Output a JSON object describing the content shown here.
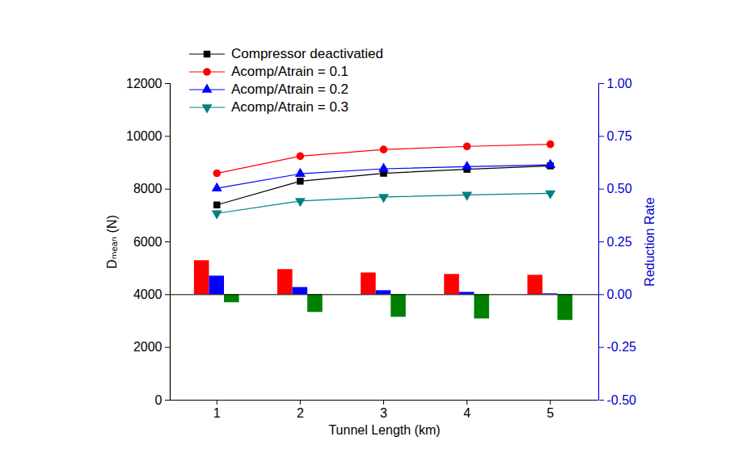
{
  "chart_data": {
    "type": "line",
    "xlabel": "Tunnel Length (km)",
    "ylabel": "Dₘₑₐₙ (N)",
    "y2label": "Reduction Rate",
    "x": [
      1,
      2,
      3,
      4,
      5
    ],
    "xlim": [
      0.44,
      5.58
    ],
    "xticks": [
      1,
      2,
      3,
      4,
      5
    ],
    "ylim": [
      0,
      12000
    ],
    "yticks": [
      0,
      2000,
      4000,
      6000,
      8000,
      10000,
      12000
    ],
    "y2lim": [
      -0.5,
      1.0
    ],
    "y2ticks": [
      {
        "value": -0.5,
        "label": "-0.50"
      },
      {
        "value": -0.25,
        "label": "-0.25"
      },
      {
        "value": 0,
        "label": "0.00"
      },
      {
        "value": 0.25,
        "label": "0.25"
      },
      {
        "value": 0.5,
        "label": "0.50"
      },
      {
        "value": 0.75,
        "label": "0.75"
      },
      {
        "value": 1.0,
        "label": "1.00"
      }
    ],
    "legend": "upper left",
    "series": [
      {
        "name": "Compressor deactivatied",
        "color": "#000000",
        "marker": "square",
        "values": [
          7400,
          8300,
          8600,
          8750,
          8880
        ]
      },
      {
        "name": "Acomp/Atrain = 0.1",
        "color": "#ff0000",
        "marker": "circle",
        "values": [
          8600,
          9250,
          9500,
          9620,
          9700
        ]
      },
      {
        "name": "Acomp/Atrain = 0.2",
        "color": "#0000ff",
        "marker": "triangle-up",
        "values": [
          8030,
          8580,
          8770,
          8850,
          8920
        ]
      },
      {
        "name": "Acomp/Atrain = 0.3",
        "color": "#008080",
        "marker": "triangle-down",
        "values": [
          7080,
          7550,
          7700,
          7780,
          7840
        ]
      },
      {
        "type": "bar",
        "axis": "y2",
        "color": "#ff0000",
        "values": [
          0.161,
          0.119,
          0.103,
          0.096,
          0.092
        ]
      },
      {
        "type": "bar",
        "axis": "y2",
        "color": "#0000ff",
        "values": [
          0.088,
          0.034,
          0.019,
          0.011,
          0.004
        ]
      },
      {
        "type": "bar",
        "axis": "y2",
        "color": "#008000",
        "values": [
          -0.038,
          -0.084,
          -0.107,
          -0.115,
          -0.122
        ]
      }
    ]
  }
}
